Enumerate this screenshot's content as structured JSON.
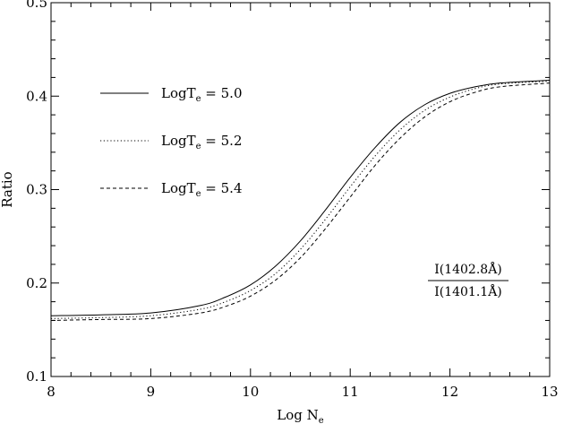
{
  "chart_data": {
    "type": "line",
    "title": "",
    "xlabel": "Log N",
    "xlabel_sub": "e",
    "ylabel": "Ratio",
    "xlim": [
      8,
      13
    ],
    "ylim": [
      0.1,
      0.5
    ],
    "x_ticks": [
      "8",
      "9",
      "10",
      "11",
      "12",
      "13"
    ],
    "y_ticks": [
      "0.1",
      "0.2",
      "0.3",
      "0.4",
      "0.5"
    ],
    "grid": false,
    "legend_position": "upper-left",
    "series": [
      {
        "name": "LogT",
        "name_sub": "e",
        "name_value": " = 5.0",
        "style": "solid",
        "x": [
          8.0,
          8.5,
          9.0,
          9.5,
          9.75,
          10.0,
          10.25,
          10.5,
          10.75,
          11.0,
          11.25,
          11.5,
          11.75,
          12.0,
          12.25,
          12.5,
          13.0
        ],
        "y": [
          0.165,
          0.166,
          0.168,
          0.176,
          0.185,
          0.198,
          0.218,
          0.245,
          0.278,
          0.313,
          0.345,
          0.372,
          0.391,
          0.403,
          0.41,
          0.414,
          0.417
        ]
      },
      {
        "name": "LogT",
        "name_sub": "e",
        "name_value": " = 5.2",
        "style": "dotted",
        "x": [
          8.0,
          8.5,
          9.0,
          9.5,
          9.75,
          10.0,
          10.25,
          10.5,
          10.75,
          11.0,
          11.25,
          11.5,
          11.75,
          12.0,
          12.25,
          12.5,
          13.0
        ],
        "y": [
          0.162,
          0.163,
          0.165,
          0.172,
          0.18,
          0.192,
          0.21,
          0.236,
          0.268,
          0.303,
          0.336,
          0.364,
          0.385,
          0.399,
          0.408,
          0.413,
          0.416
        ]
      },
      {
        "name": "LogT",
        "name_sub": "e",
        "name_value": " = 5.4",
        "style": "dashed",
        "x": [
          8.0,
          8.5,
          9.0,
          9.5,
          9.75,
          10.0,
          10.25,
          10.5,
          10.75,
          11.0,
          11.25,
          11.5,
          11.75,
          12.0,
          12.25,
          12.5,
          13.0
        ],
        "y": [
          0.16,
          0.161,
          0.162,
          0.168,
          0.175,
          0.186,
          0.203,
          0.227,
          0.258,
          0.292,
          0.326,
          0.355,
          0.378,
          0.394,
          0.404,
          0.41,
          0.414
        ]
      }
    ],
    "annotation": {
      "numerator": "I(1402.8Å)",
      "denominator": "I(1401.1Å)"
    }
  }
}
